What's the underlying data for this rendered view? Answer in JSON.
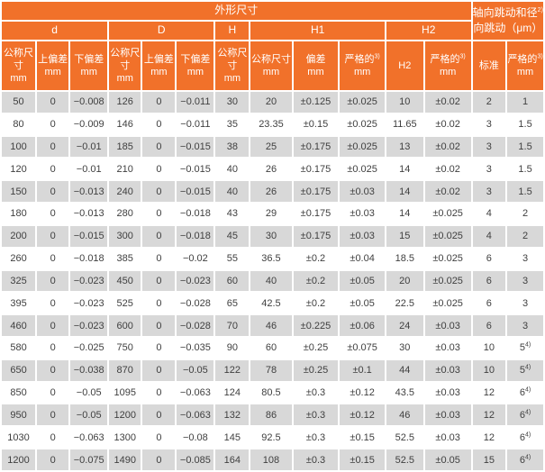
{
  "colors": {
    "accent": "#F1712A",
    "row_alt": "#D8D8D8",
    "text": "#3F3F3F",
    "header_text": "#FFFFFF"
  },
  "title_row": {
    "main": "外形尺寸",
    "axial": {
      "line1": "轴向跳动和径",
      "sup": "2)",
      "line2": "向跳动（μm）"
    }
  },
  "groups": [
    {
      "label": "d"
    },
    {
      "label": "D"
    },
    {
      "label": "H"
    },
    {
      "label": "H1"
    },
    {
      "label": "H2"
    }
  ],
  "columns": [
    {
      "label": "公称尺寸",
      "unit": "mm"
    },
    {
      "label": "上偏差",
      "unit": "mm"
    },
    {
      "label": "下偏差",
      "unit": "mm"
    },
    {
      "label": "公称尺寸",
      "unit": "mm"
    },
    {
      "label": "上偏差",
      "unit": "mm"
    },
    {
      "label": "下偏差",
      "unit": "mm"
    },
    {
      "label": "公称尺寸",
      "unit": "mm"
    },
    {
      "label": "公称尺寸",
      "unit": "mm"
    },
    {
      "label": "偏差",
      "unit": "mm"
    },
    {
      "label": "严格的",
      "sup": "3)",
      "unit": "mm"
    },
    {
      "label": "H2"
    },
    {
      "label": "严格的",
      "sup": "3)",
      "unit": "mm"
    },
    {
      "label": "标准"
    },
    {
      "label": "严格的",
      "sup": "3)",
      "unit": "mm"
    }
  ],
  "table": {
    "rows": [
      [
        "50",
        "0",
        "−0.008",
        "126",
        "0",
        "−0.011",
        "30",
        "20",
        "±0.125",
        "±0.025",
        "10",
        "±0.02",
        "2",
        "1"
      ],
      [
        "80",
        "0",
        "−0.009",
        "146",
        "0",
        "−0.011",
        "35",
        "23.35",
        "±0.15",
        "±0.025",
        "11.65",
        "±0.02",
        "3",
        "1.5"
      ],
      [
        "100",
        "0",
        "−0.01",
        "185",
        "0",
        "−0.015",
        "38",
        "25",
        "±0.175",
        "±0.025",
        "13",
        "±0.02",
        "3",
        "1.5"
      ],
      [
        "120",
        "0",
        "−0.01",
        "210",
        "0",
        "−0.015",
        "40",
        "26",
        "±0.175",
        "±0.025",
        "14",
        "±0.02",
        "3",
        "1.5"
      ],
      [
        "150",
        "0",
        "−0.013",
        "240",
        "0",
        "−0.015",
        "40",
        "26",
        "±0.175",
        "±0.03",
        "14",
        "±0.02",
        "3",
        "1.5"
      ],
      [
        "180",
        "0",
        "−0.013",
        "280",
        "0",
        "−0.018",
        "43",
        "29",
        "±0.175",
        "±0.03",
        "14",
        "±0.025",
        "4",
        "2"
      ],
      [
        "200",
        "0",
        "−0.015",
        "300",
        "0",
        "−0.018",
        "45",
        "30",
        "±0.175",
        "±0.03",
        "15",
        "±0.025",
        "4",
        "2"
      ],
      [
        "260",
        "0",
        "−0.018",
        "385",
        "0",
        "−0.02",
        "55",
        "36.5",
        "±0.2",
        "±0.04",
        "18.5",
        "±0.025",
        "6",
        "3"
      ],
      [
        "325",
        "0",
        "−0.023",
        "450",
        "0",
        "−0.023",
        "60",
        "40",
        "±0.2",
        "±0.05",
        "20",
        "±0.025",
        "6",
        "3"
      ],
      [
        "395",
        "0",
        "−0.023",
        "525",
        "0",
        "−0.028",
        "65",
        "42.5",
        "±0.2",
        "±0.05",
        "22.5",
        "±0.025",
        "6",
        "3"
      ],
      [
        "460",
        "0",
        "−0.023",
        "600",
        "0",
        "−0.028",
        "70",
        "46",
        "±0.225",
        "±0.06",
        "24",
        "±0.03",
        "6",
        "3"
      ],
      [
        "580",
        "0",
        "−0.025",
        "750",
        "0",
        "−0.035",
        "90",
        "60",
        "±0.25",
        "±0.075",
        "30",
        "±0.03",
        "10",
        "5^4)"
      ],
      [
        "650",
        "0",
        "−0.038",
        "870",
        "0",
        "−0.05",
        "122",
        "78",
        "±0.25",
        "±0.1",
        "44",
        "±0.03",
        "10",
        "5^4)"
      ],
      [
        "850",
        "0",
        "−0.05",
        "1095",
        "0",
        "−0.063",
        "124",
        "80.5",
        "±0.3",
        "±0.12",
        "43.5",
        "±0.03",
        "12",
        "6^4)"
      ],
      [
        "950",
        "0",
        "−0.05",
        "1200",
        "0",
        "−0.063",
        "132",
        "86",
        "±0.3",
        "±0.12",
        "46",
        "±0.03",
        "12",
        "6^4)"
      ],
      [
        "1030",
        "0",
        "−0.063",
        "1300",
        "0",
        "−0.08",
        "145",
        "92.5",
        "±0.3",
        "±0.15",
        "52.5",
        "±0.03",
        "12",
        "6^4)"
      ],
      [
        "1200",
        "0",
        "−0.075",
        "1490",
        "0",
        "−0.085",
        "164",
        "108",
        "±0.3",
        "±0.15",
        "52.5",
        "±0.05",
        "15",
        "6^4)"
      ]
    ]
  }
}
